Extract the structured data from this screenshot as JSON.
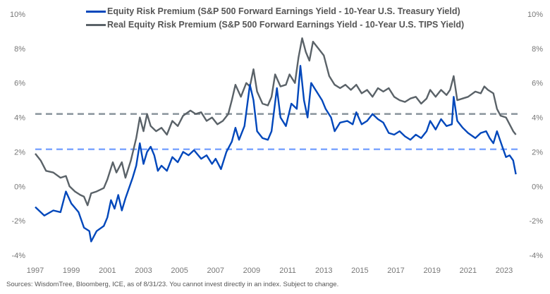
{
  "chart_data": {
    "type": "line",
    "title": "",
    "xlabel": "",
    "ylabel": "",
    "xlim": [
      1997,
      2023.7
    ],
    "ylim": [
      -4,
      10
    ],
    "x_ticks": [
      "1997",
      "1999",
      "2001",
      "2003",
      "2005",
      "2007",
      "2009",
      "2011",
      "2013",
      "2015",
      "2017",
      "2019",
      "2021",
      "2023"
    ],
    "y_ticks": [
      "10%",
      "8%",
      "6%",
      "4%",
      "2%",
      "0%",
      "-2%",
      "-4%"
    ],
    "y_tick_values": [
      10,
      8,
      6,
      4,
      2,
      0,
      -2,
      -4
    ],
    "grid": false,
    "legend_position": "top",
    "series": [
      {
        "name": "Equity Risk Premium (S&P 500 Forward Earnings Yield - 10-Year U.S. Treasury Yield)",
        "color": "#0047BB",
        "x": [
          1997.0,
          1997.5,
          1998.0,
          1998.4,
          1998.7,
          1999.0,
          1999.4,
          1999.7,
          2000.0,
          2000.1,
          2000.4,
          2000.8,
          2001.0,
          2001.2,
          2001.4,
          2001.6,
          2001.8,
          2002.0,
          2002.4,
          2002.6,
          2002.8,
          2003.0,
          2003.2,
          2003.4,
          2003.6,
          2003.8,
          2004.0,
          2004.3,
          2004.6,
          2004.9,
          2005.2,
          2005.5,
          2005.8,
          2006.2,
          2006.5,
          2006.8,
          2007.0,
          2007.3,
          2007.6,
          2007.9,
          2008.1,
          2008.3,
          2008.6,
          2008.9,
          2009.1,
          2009.3,
          2009.6,
          2009.9,
          2010.1,
          2010.4,
          2010.6,
          2010.9,
          2011.2,
          2011.5,
          2011.7,
          2011.9,
          2012.1,
          2012.3,
          2012.6,
          2012.9,
          2013.1,
          2013.4,
          2013.6,
          2013.9,
          2014.3,
          2014.6,
          2014.8,
          2015.1,
          2015.4,
          2015.7,
          2016.0,
          2016.3,
          2016.6,
          2016.9,
          2017.2,
          2017.5,
          2017.8,
          2018.1,
          2018.4,
          2018.7,
          2018.9,
          2019.2,
          2019.5,
          2019.8,
          2020.1,
          2020.2,
          2020.4,
          2020.7,
          2021.0,
          2021.4,
          2021.7,
          2022.0,
          2022.2,
          2022.4,
          2022.6,
          2022.9,
          2023.1,
          2023.3,
          2023.5,
          2023.65
        ],
        "values": [
          -1.2,
          -1.7,
          -1.4,
          -1.5,
          -0.3,
          -1.0,
          -1.5,
          -2.4,
          -2.6,
          -3.2,
          -2.6,
          -2.3,
          -1.8,
          -0.8,
          -1.3,
          -0.5,
          -1.4,
          -0.7,
          0.5,
          1.2,
          2.5,
          1.3,
          2.0,
          2.3,
          1.8,
          0.9,
          1.2,
          0.9,
          1.7,
          1.4,
          2.0,
          1.8,
          2.1,
          1.6,
          1.8,
          1.3,
          1.6,
          1.0,
          2.0,
          2.6,
          3.4,
          2.7,
          3.5,
          5.9,
          5.0,
          3.2,
          2.8,
          2.7,
          3.2,
          5.7,
          4.0,
          3.5,
          4.8,
          4.5,
          7.0,
          5.0,
          4.0,
          6.0,
          5.5,
          5.0,
          4.5,
          4.0,
          3.2,
          3.7,
          3.8,
          3.6,
          4.3,
          3.6,
          3.8,
          4.2,
          3.9,
          3.7,
          3.1,
          3.0,
          3.2,
          2.9,
          2.7,
          3.0,
          2.8,
          3.2,
          3.8,
          3.3,
          3.9,
          3.5,
          3.6,
          5.2,
          3.8,
          3.4,
          3.1,
          2.8,
          3.1,
          3.2,
          2.8,
          2.5,
          3.2,
          2.3,
          1.7,
          1.8,
          1.5,
          0.7
        ]
      },
      {
        "name": "Real Equity Risk Premium (S&P 500 Forward Earnings Yield - 10-Year U.S. TIPS Yield)",
        "color": "#5A6268",
        "x": [
          1997.0,
          1997.3,
          1997.6,
          1998.0,
          1998.4,
          1998.7,
          1998.9,
          1999.2,
          1999.5,
          1999.7,
          1999.9,
          2000.1,
          2000.4,
          2000.8,
          2001.0,
          2001.3,
          2001.5,
          2001.8,
          2002.0,
          2002.3,
          2002.6,
          2002.8,
          2003.0,
          2003.2,
          2003.4,
          2003.7,
          2004.0,
          2004.3,
          2004.6,
          2004.9,
          2005.2,
          2005.6,
          2005.9,
          2006.2,
          2006.5,
          2006.8,
          2007.1,
          2007.4,
          2007.7,
          2007.9,
          2008.1,
          2008.4,
          2008.7,
          2008.9,
          2009.1,
          2009.3,
          2009.6,
          2009.9,
          2010.1,
          2010.3,
          2010.6,
          2010.9,
          2011.1,
          2011.4,
          2011.6,
          2011.8,
          2012.0,
          2012.2,
          2012.4,
          2012.7,
          2013.0,
          2013.3,
          2013.6,
          2013.9,
          2014.2,
          2014.5,
          2014.8,
          2015.1,
          2015.4,
          2015.7,
          2016.0,
          2016.3,
          2016.6,
          2016.9,
          2017.2,
          2017.5,
          2017.8,
          2018.1,
          2018.4,
          2018.7,
          2018.9,
          2019.2,
          2019.5,
          2019.8,
          2020.0,
          2020.2,
          2020.4,
          2020.7,
          2021.0,
          2021.4,
          2021.7,
          2021.9,
          2022.1,
          2022.4,
          2022.6,
          2022.8,
          2023.1,
          2023.3,
          2023.5,
          2023.65
        ],
        "values": [
          1.9,
          1.5,
          0.9,
          0.8,
          0.5,
          0.6,
          0.0,
          -0.3,
          -0.5,
          -0.6,
          -1.1,
          -0.4,
          -0.3,
          -0.1,
          0.4,
          1.4,
          0.8,
          1.4,
          0.5,
          1.5,
          2.8,
          4.0,
          3.2,
          4.2,
          3.5,
          3.2,
          3.4,
          3.0,
          3.8,
          3.5,
          4.1,
          4.4,
          4.2,
          4.3,
          3.8,
          4.0,
          3.6,
          3.8,
          4.2,
          5.0,
          5.9,
          5.2,
          6.0,
          5.8,
          6.8,
          5.5,
          4.8,
          4.7,
          5.2,
          6.5,
          5.8,
          5.9,
          6.5,
          6.0,
          7.5,
          8.6,
          7.8,
          7.3,
          8.4,
          8.0,
          7.6,
          6.4,
          5.9,
          5.7,
          5.9,
          5.6,
          5.9,
          5.4,
          5.6,
          5.2,
          5.7,
          5.5,
          5.7,
          5.2,
          5.0,
          4.9,
          5.1,
          5.2,
          4.8,
          5.1,
          5.6,
          5.2,
          5.6,
          5.3,
          5.6,
          6.4,
          5.0,
          5.1,
          5.2,
          5.5,
          5.4,
          5.8,
          5.6,
          5.4,
          4.5,
          4.1,
          4.0,
          3.6,
          3.2,
          3.0
        ]
      }
    ],
    "reference_lines": [
      {
        "value": 4.2,
        "color": "#8A949C",
        "style": "dashed"
      },
      {
        "value": 2.15,
        "color": "#7FA7FF",
        "style": "dashed"
      }
    ]
  },
  "footnote": "Sources: WisdomTree, Bloomberg, ICE, as of 8/31/23. You cannot invest directly in an index. Subject to change."
}
